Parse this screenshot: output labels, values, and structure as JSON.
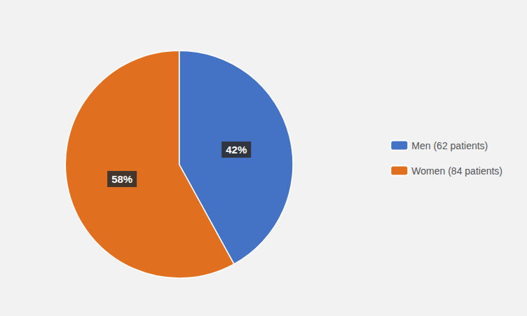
{
  "chart_data": {
    "type": "pie",
    "categories": [
      "Men (62 patients)",
      "Women (84 patients)"
    ],
    "values": [
      42,
      58
    ],
    "value_labels": [
      "42%",
      "58%"
    ],
    "colors": [
      "#4472c4",
      "#e07020"
    ],
    "data_labels": true,
    "legend": "right"
  }
}
